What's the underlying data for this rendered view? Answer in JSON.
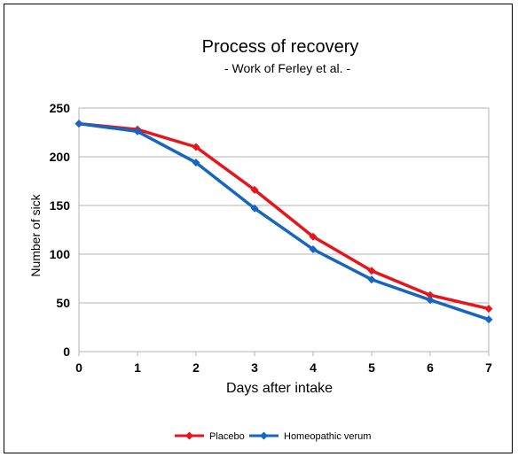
{
  "chart_data": {
    "type": "line",
    "title": "Process of recovery",
    "subtitle": "- Work of Ferley et al. -",
    "xlabel": "Days after intake",
    "ylabel": "Number of sick",
    "x": [
      0,
      1,
      2,
      3,
      4,
      5,
      6,
      7
    ],
    "x_tick_labels": [
      "0",
      "1",
      "2",
      "3",
      "4",
      "5",
      "6",
      "7"
    ],
    "xlim": [
      0,
      7
    ],
    "ylim": [
      0,
      250
    ],
    "y_ticks": [
      0,
      50,
      100,
      150,
      200,
      250
    ],
    "y_tick_labels": [
      "0",
      "50",
      "100",
      "150",
      "200",
      "250"
    ],
    "grid": "horizontal",
    "legend_position": "bottom",
    "series": [
      {
        "name": "Placebo",
        "color": "#e8141b",
        "marker": "diamond",
        "values": [
          234,
          228,
          210,
          166,
          118,
          83,
          58,
          44
        ]
      },
      {
        "name": "Homeopathic verum",
        "color": "#1566c0",
        "marker": "diamond",
        "values": [
          234,
          226,
          194,
          147,
          105,
          74,
          53,
          33
        ]
      }
    ]
  }
}
